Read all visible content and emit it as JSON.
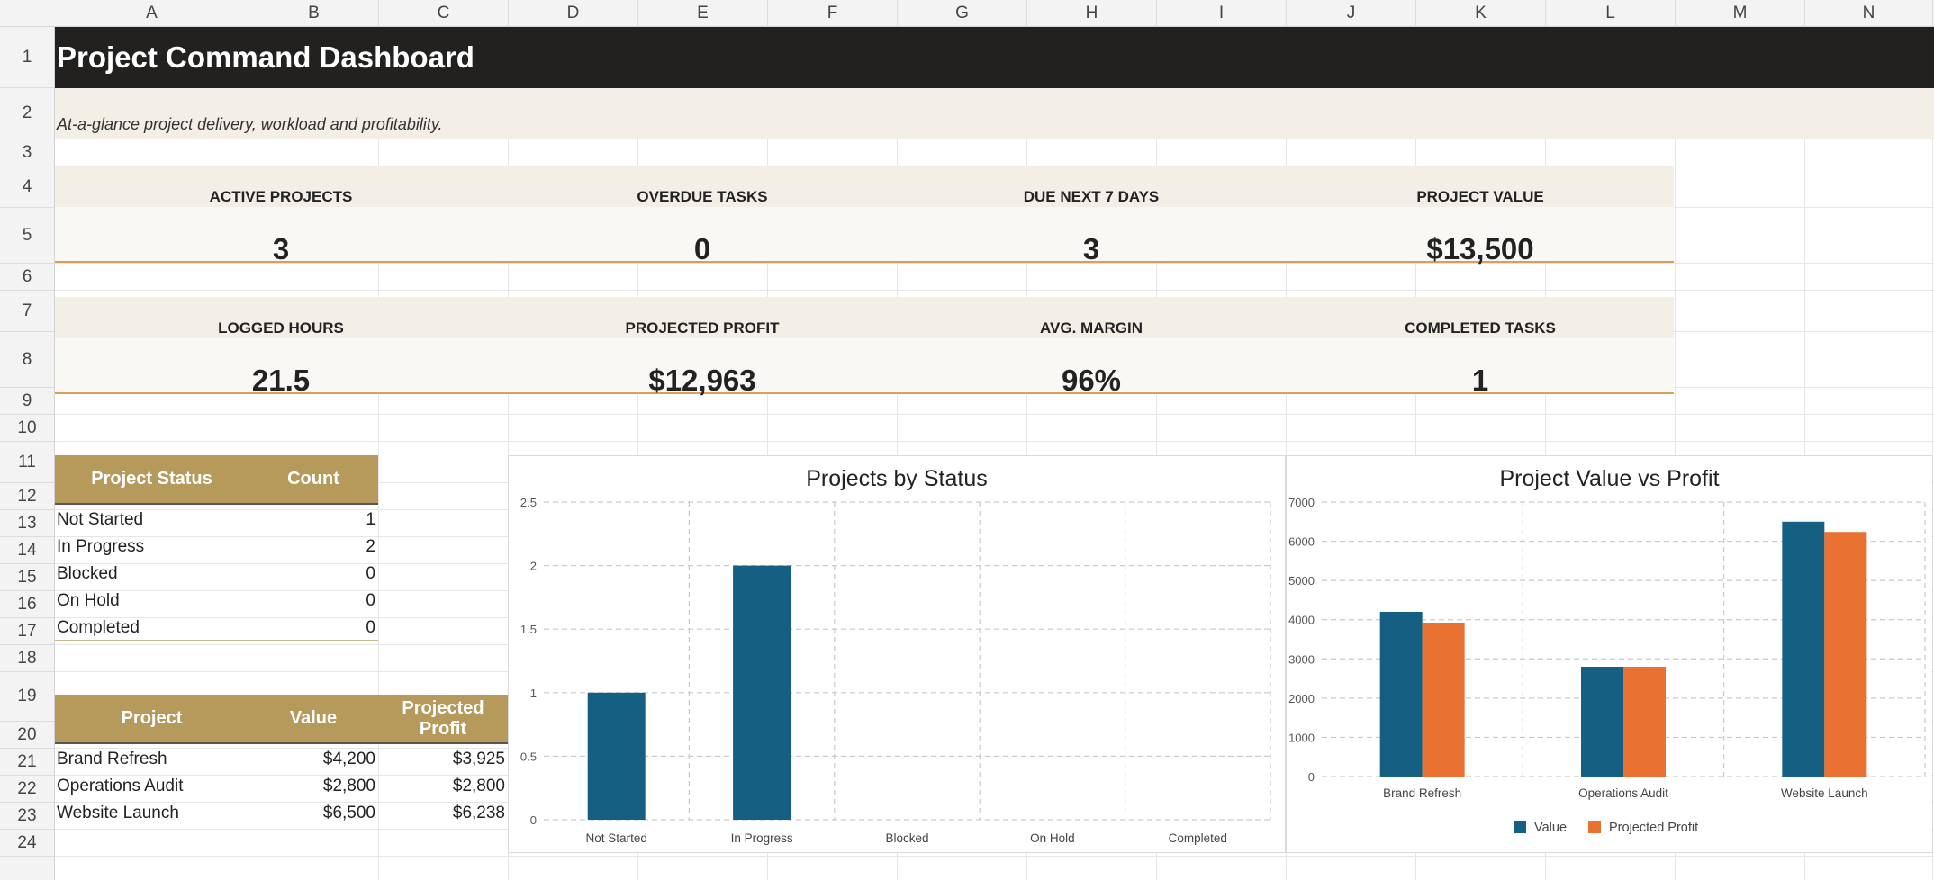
{
  "columns": [
    "A",
    "B",
    "C",
    "D",
    "E",
    "F",
    "G",
    "H",
    "I",
    "J",
    "K",
    "L",
    "M",
    "N"
  ],
  "rows": [
    "1",
    "2",
    "3",
    "4",
    "5",
    "6",
    "7",
    "8",
    "9",
    "10",
    "11",
    "12",
    "13",
    "14",
    "15",
    "16",
    "17",
    "18",
    "19",
    "20",
    "21",
    "22",
    "23",
    "24"
  ],
  "dashboard": {
    "title": "Project Command Dashboard",
    "subtitle": "At-a-glance project delivery, workload and profitability."
  },
  "kpis_row1": [
    {
      "label": "ACTIVE PROJECTS",
      "value": "3"
    },
    {
      "label": "OVERDUE TASKS",
      "value": "0"
    },
    {
      "label": "DUE NEXT 7 DAYS",
      "value": "3"
    },
    {
      "label": "PROJECT VALUE",
      "value": "$13,500"
    }
  ],
  "kpis_row2": [
    {
      "label": "LOGGED HOURS",
      "value": "21.5"
    },
    {
      "label": "PROJECTED PROFIT",
      "value": "$12,963"
    },
    {
      "label": "AVG. MARGIN",
      "value": "96%"
    },
    {
      "label": "COMPLETED TASKS",
      "value": "1"
    }
  ],
  "status_table": {
    "headers": [
      "Project Status",
      "Count"
    ],
    "rows": [
      {
        "status": "Not Started",
        "count": "1"
      },
      {
        "status": "In Progress",
        "count": "2"
      },
      {
        "status": "Blocked",
        "count": "0"
      },
      {
        "status": "On Hold",
        "count": "0"
      },
      {
        "status": "Completed",
        "count": "0"
      }
    ]
  },
  "project_table": {
    "headers": [
      "Project",
      "Value",
      "Projected Profit"
    ],
    "rows": [
      {
        "project": "Brand Refresh",
        "value": "$4,200",
        "profit": "$3,925"
      },
      {
        "project": "Operations Audit",
        "value": "$2,800",
        "profit": "$2,800"
      },
      {
        "project": "Website Launch",
        "value": "$6,500",
        "profit": "$6,238"
      }
    ]
  },
  "colors": {
    "title_band": "#222120",
    "header_gold": "#b69a5b",
    "kpi_accent": "#d9a05b",
    "series_value": "#155f82",
    "series_profit": "#e97132"
  },
  "chart_data": [
    {
      "type": "bar",
      "title": "Projects by Status",
      "categories": [
        "Not Started",
        "In Progress",
        "Blocked",
        "On Hold",
        "Completed"
      ],
      "values": [
        1,
        2,
        0,
        0,
        0
      ],
      "ylim": [
        0,
        2.5
      ],
      "yticks": [
        "0",
        "0.5",
        "1",
        "1.5",
        "2",
        "2.5"
      ],
      "grid": true,
      "legend": "none"
    },
    {
      "type": "bar",
      "title": "Project Value vs Profit",
      "categories": [
        "Brand Refresh",
        "Operations Audit",
        "Website Launch"
      ],
      "series": [
        {
          "name": "Value",
          "values": [
            4200,
            2800,
            6500
          ]
        },
        {
          "name": "Projected Profit",
          "values": [
            3925,
            2800,
            6238
          ]
        }
      ],
      "ylim": [
        0,
        7000
      ],
      "yticks": [
        "0",
        "1000",
        "2000",
        "3000",
        "4000",
        "5000",
        "6000",
        "7000"
      ],
      "grid": true,
      "legend": "bottom"
    }
  ]
}
